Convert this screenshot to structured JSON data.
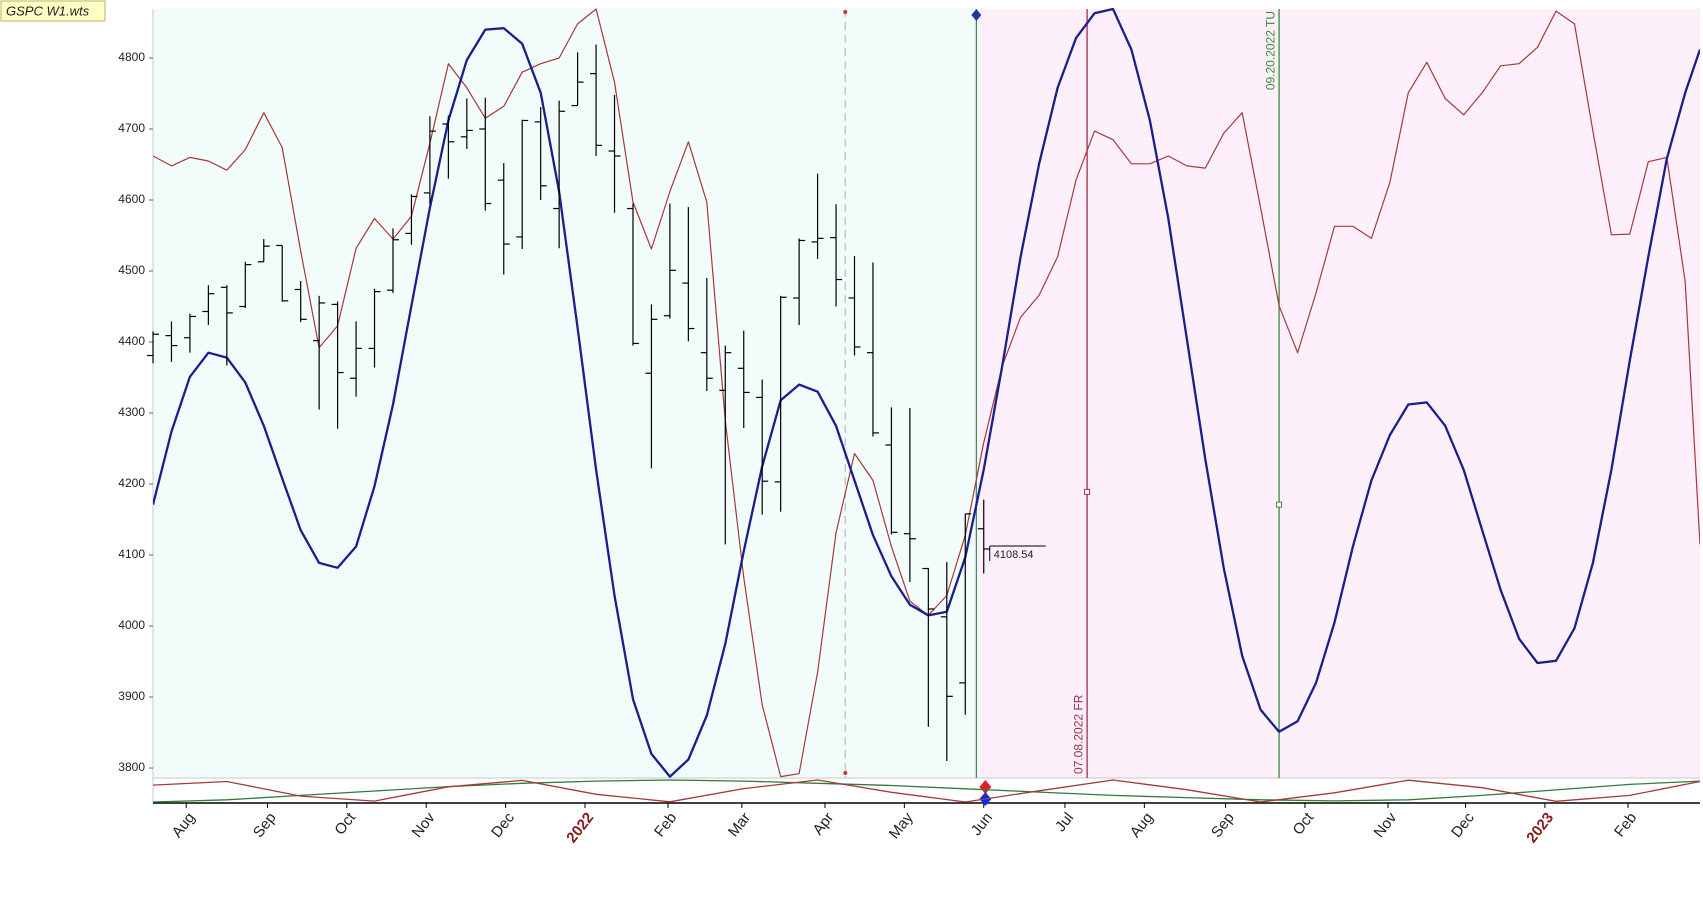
{
  "chart_data": {
    "type": "ohlc",
    "title": "GSPC W1.wts",
    "xlim": [
      0,
      83.8
    ],
    "ylim": [
      3786,
      4869
    ],
    "yticks": [
      3800,
      3900,
      4000,
      4100,
      4200,
      4300,
      4400,
      4500,
      4600,
      4700,
      4800
    ],
    "xticks": [
      {
        "value": 1.8,
        "label": "Aug"
      },
      {
        "value": 6.2,
        "label": "Sep"
      },
      {
        "value": 10.5,
        "label": "Oct"
      },
      {
        "value": 14.8,
        "label": "Nov"
      },
      {
        "value": 19.1,
        "label": "Dec"
      },
      {
        "value": 23.4,
        "label": "2022",
        "color": "#8b1a1a"
      },
      {
        "value": 27.9,
        "label": "Feb"
      },
      {
        "value": 31.9,
        "label": "Mar"
      },
      {
        "value": 36.4,
        "label": "Apr"
      },
      {
        "value": 40.7,
        "label": "May"
      },
      {
        "value": 45.0,
        "label": "Jun"
      },
      {
        "value": 49.4,
        "label": "Jul"
      },
      {
        "value": 53.7,
        "label": "Aug"
      },
      {
        "value": 58.1,
        "label": "Sep"
      },
      {
        "value": 62.4,
        "label": "Oct"
      },
      {
        "value": 66.9,
        "label": "Nov"
      },
      {
        "value": 71.1,
        "label": "Dec"
      },
      {
        "value": 75.4,
        "label": "2023",
        "color": "#8b1a1a"
      },
      {
        "value": 79.9,
        "label": "Feb"
      }
    ],
    "shade": [
      {
        "from": 0,
        "to": 44.6,
        "color": "#f2fcfb"
      },
      {
        "from": 44.6,
        "to": 83.8,
        "color": "#fdf0fb"
      }
    ],
    "bars": {
      "color": "#000000",
      "x": [
        0,
        1,
        2,
        3,
        4,
        5,
        6,
        7,
        8,
        9,
        10,
        11,
        12,
        13,
        14,
        15,
        16,
        17,
        18,
        19,
        20,
        21,
        22,
        23,
        24,
        25,
        26,
        27,
        28,
        29,
        30,
        31,
        32,
        33,
        34,
        35,
        36,
        37,
        38,
        39,
        40,
        41,
        42,
        43,
        44,
        45
      ],
      "open": [
        4381,
        4409,
        4406,
        4443,
        4477,
        4450,
        4513,
        4536,
        4474,
        4402,
        4453,
        4349,
        4391,
        4473,
        4553,
        4610,
        4707,
        4689,
        4700,
        4628,
        4548,
        4710,
        4588,
        4733,
        4778,
        4669,
        4588,
        4356,
        4437,
        4483,
        4385,
        4332,
        4363,
        4322,
        4203,
        4462,
        4541,
        4547,
        4462,
        4385,
        4255,
        4130,
        4081,
        4013,
        3920,
        4137
      ],
      "high": [
        4415,
        4429,
        4440,
        4480,
        4480,
        4513,
        4545,
        4536,
        4486,
        4465,
        4457,
        4429,
        4475,
        4560,
        4608,
        4718,
        4719,
        4743,
        4744,
        4652,
        4713,
        4731,
        4740,
        4808,
        4819,
        4748,
        4595,
        4453,
        4595,
        4590,
        4490,
        4395,
        4416,
        4347,
        4465,
        4546,
        4637,
        4594,
        4521,
        4512,
        4308,
        4307,
        4082,
        4090,
        4158,
        4178
      ],
      "low": [
        4370,
        4372,
        4385,
        4424,
        4367,
        4448,
        4513,
        4457,
        4428,
        4305,
        4278,
        4323,
        4364,
        4469,
        4537,
        4595,
        4630,
        4672,
        4585,
        4495,
        4531,
        4600,
        4532,
        4733,
        4662,
        4582,
        4395,
        4222,
        4433,
        4401,
        4331,
        4115,
        4279,
        4157,
        4161,
        4424,
        4517,
        4450,
        4381,
        4267,
        4129,
        4062,
        3858,
        3810,
        3875,
        4074
      ],
      "close": [
        4411,
        4395,
        4436,
        4468,
        4441,
        4509,
        4535,
        4458,
        4432,
        4455,
        4357,
        4391,
        4471,
        4544,
        4605,
        4697,
        4682,
        4698,
        4595,
        4538,
        4712,
        4620,
        4725,
        4766,
        4677,
        4662,
        4398,
        4432,
        4501,
        4419,
        4349,
        4385,
        4329,
        4204,
        4463,
        4543,
        4546,
        4488,
        4393,
        4272,
        4132,
        4123,
        4024,
        3901,
        4158,
        4108.54
      ]
    },
    "lines": {
      "x": [
        0,
        1,
        2,
        3,
        4,
        5,
        6,
        7,
        8,
        9,
        10,
        11,
        12,
        13,
        14,
        15,
        16,
        17,
        18,
        19,
        20,
        21,
        22,
        23,
        24,
        25,
        26,
        27,
        28,
        29,
        30,
        31,
        32,
        33,
        34,
        35,
        36,
        37,
        38,
        39,
        40,
        41,
        42,
        43,
        44,
        45,
        46,
        47,
        48,
        49,
        50,
        51,
        52,
        53,
        54,
        55,
        56,
        57,
        58,
        59,
        60,
        61,
        62,
        63,
        64,
        65,
        66,
        67,
        68,
        69,
        70,
        71,
        72,
        73,
        74,
        75,
        76,
        77,
        78,
        79,
        80,
        81,
        82,
        83,
        83.8
      ],
      "series": [
        {
          "color": "#a33a3a",
          "width": 1.2,
          "values": [
            4662,
            4648,
            4660,
            4655,
            4642,
            4671,
            4723,
            4674,
            4528,
            4392,
            4423,
            4532,
            4574,
            4545,
            4577,
            4680,
            4792,
            4758,
            4715,
            4732,
            4780,
            4792,
            4800,
            4848,
            4869,
            4766,
            4597,
            4531,
            4612,
            4682,
            4597,
            4289,
            4069,
            3889,
            3788,
            3792,
            3935,
            4131,
            4243,
            4205,
            4112,
            4035,
            4015,
            4043,
            4128,
            4258,
            4366,
            4435,
            4466,
            4520,
            4628,
            4697,
            4685,
            4651,
            4651,
            4662,
            4648,
            4645,
            4694,
            4723,
            4589,
            4451,
            4385,
            4469,
            4563,
            4563,
            4546,
            4625,
            4751,
            4794,
            4743,
            4720,
            4751,
            4789,
            4792,
            4815,
            4866,
            4848,
            4697,
            4551,
            4552,
            4654,
            4660,
            4485,
            4115
          ]
        },
        {
          "color": "#1a1f8c",
          "width": 2.3,
          "values": [
            4171,
            4274,
            4351,
            4385,
            4378,
            4343,
            4282,
            4208,
            4135,
            4089,
            4082,
            4112,
            4197,
            4312,
            4451,
            4589,
            4712,
            4797,
            4840,
            4842,
            4820,
            4751,
            4612,
            4420,
            4220,
            4043,
            3897,
            3820,
            3788,
            3812,
            3874,
            3975,
            4105,
            4225,
            4318,
            4340,
            4330,
            4282,
            4205,
            4128,
            4070,
            4030,
            4015,
            4020,
            4097,
            4220,
            4366,
            4520,
            4651,
            4758,
            4828,
            4863,
            4869,
            4812,
            4712,
            4574,
            4405,
            4235,
            4082,
            3958,
            3882,
            3851,
            3866,
            3920,
            4005,
            4112,
            4205,
            4269,
            4312,
            4315,
            4282,
            4220,
            4135,
            4051,
            3982,
            3948,
            3951,
            3997,
            4089,
            4220,
            4374,
            4520,
            4658,
            4751,
            4812
          ]
        }
      ]
    },
    "cycles": {
      "y2lim": [
        0,
        1
      ],
      "x": [
        0,
        4,
        8,
        12,
        16,
        20,
        24,
        28,
        32,
        36,
        40,
        44,
        48,
        52,
        56,
        60,
        64,
        68,
        72,
        76,
        80,
        83.8
      ],
      "series": [
        {
          "color": "#2e7d3a",
          "axis": "y2",
          "values": [
            0,
            0.1,
            0.3,
            0.5,
            0.7,
            0.85,
            0.95,
            1.0,
            0.95,
            0.85,
            0.75,
            0.6,
            0.45,
            0.3,
            0.2,
            0.1,
            0.05,
            0.1,
            0.3,
            0.55,
            0.8,
            0.95
          ]
        },
        {
          "color": "#a33a3a",
          "axis": "y2",
          "values": [
            0.77,
            0.93,
            0.27,
            0.04,
            0.69,
            0.98,
            0.35,
            0.01,
            0.61,
            1.0,
            0.44,
            0.0,
            0.51,
            1.0,
            0.56,
            0.0,
            0.42,
            0.99,
            0.65,
            0.03,
            0.3,
            0.93
          ]
        }
      ]
    },
    "vlines": [
      {
        "x": 37.5,
        "color": "#bbbbbb",
        "style": "dashed"
      },
      {
        "x": 44.6,
        "color": "#2e8b57",
        "style": "solid"
      }
    ],
    "date_markers": [
      {
        "x": 50.6,
        "y": 4189,
        "label": "07.08.2022 FR",
        "color": "#a0304a",
        "label_position": "bottom"
      },
      {
        "x": 61.0,
        "y": 4171,
        "label": "09.20.2022 TU",
        "color": "#3a8a3a",
        "label_position": "top"
      }
    ]
  }
}
